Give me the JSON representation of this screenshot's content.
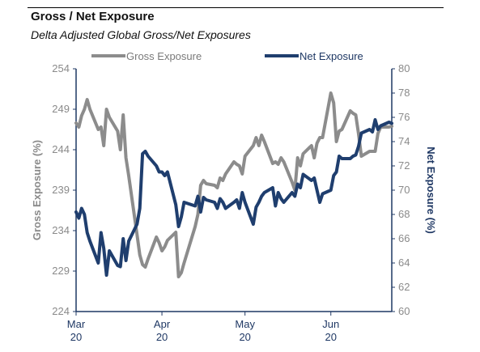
{
  "header": {
    "title": "Gross / Net Exposure",
    "subtitle": "Delta Adjusted Global Gross/Net Exposures"
  },
  "colors": {
    "gross": "#8c8c8c",
    "net": "#1f3e6e",
    "axis": "#1f3864",
    "tick_text": "#8a8a8a"
  },
  "chart_data": {
    "type": "line",
    "title": "Gross / Net Exposure",
    "subtitle": "Delta Adjusted Global Gross/Net Exposures",
    "legend_position": "top",
    "grid": false,
    "x_range": [
      "2020-03-01",
      "2020-06-23"
    ],
    "x_tick_labels": [
      {
        "date": "2020-03-01",
        "line1": "Mar",
        "line2": "20"
      },
      {
        "date": "2020-04-01",
        "line1": "Apr",
        "line2": "20"
      },
      {
        "date": "2020-05-01",
        "line1": "May",
        "line2": "20"
      },
      {
        "date": "2020-06-01",
        "line1": "Jun",
        "line2": "20"
      }
    ],
    "y_left": {
      "label": "Gross Exposure (%)",
      "range": [
        224,
        254
      ],
      "ticks": [
        224,
        229,
        234,
        239,
        244,
        249,
        254
      ]
    },
    "y_right": {
      "label": "Net Exposure (%)",
      "range": [
        60,
        80
      ],
      "ticks": [
        60,
        62,
        64,
        66,
        68,
        70,
        72,
        74,
        76,
        78,
        80
      ]
    },
    "series": [
      {
        "name": "Gross Exposure",
        "axis": "left",
        "color": "#8c8c8c",
        "points": [
          [
            "2020-03-01",
            247.3
          ],
          [
            "2020-03-02",
            246.8
          ],
          [
            "2020-03-03",
            248.2
          ],
          [
            "2020-03-04",
            249.0
          ],
          [
            "2020-03-05",
            250.2
          ],
          [
            "2020-03-06",
            249.0
          ],
          [
            "2020-03-09",
            246.5
          ],
          [
            "2020-03-10",
            246.8
          ],
          [
            "2020-03-11",
            244.5
          ],
          [
            "2020-03-12",
            249.0
          ],
          [
            "2020-03-13",
            248.0
          ],
          [
            "2020-03-16",
            246.3
          ],
          [
            "2020-03-17",
            244.0
          ],
          [
            "2020-03-18",
            248.3
          ],
          [
            "2020-03-19",
            243.0
          ],
          [
            "2020-03-20",
            240.8
          ],
          [
            "2020-03-23",
            233.5
          ],
          [
            "2020-03-24",
            231.0
          ],
          [
            "2020-03-25",
            229.8
          ],
          [
            "2020-03-26",
            229.5
          ],
          [
            "2020-03-27",
            230.5
          ],
          [
            "2020-03-30",
            233.2
          ],
          [
            "2020-03-31",
            232.5
          ],
          [
            "2020-04-01",
            231.5
          ],
          [
            "2020-04-02",
            232.0
          ],
          [
            "2020-04-03",
            232.8
          ],
          [
            "2020-04-06",
            233.8
          ],
          [
            "2020-04-07",
            228.3
          ],
          [
            "2020-04-08",
            228.8
          ],
          [
            "2020-04-09",
            230.0
          ],
          [
            "2020-04-13",
            234.5
          ],
          [
            "2020-04-14",
            236.0
          ],
          [
            "2020-04-15",
            239.6
          ],
          [
            "2020-04-16",
            240.2
          ],
          [
            "2020-04-17",
            239.8
          ],
          [
            "2020-04-20",
            239.6
          ],
          [
            "2020-04-21",
            239.3
          ],
          [
            "2020-04-22",
            240.5
          ],
          [
            "2020-04-23",
            240.2
          ],
          [
            "2020-04-24",
            241.0
          ],
          [
            "2020-04-27",
            242.5
          ],
          [
            "2020-04-28",
            242.2
          ],
          [
            "2020-04-29",
            242.0
          ],
          [
            "2020-04-30",
            241.0
          ],
          [
            "2020-05-01",
            243.2
          ],
          [
            "2020-05-04",
            244.5
          ],
          [
            "2020-05-05",
            245.5
          ],
          [
            "2020-05-06",
            244.5
          ],
          [
            "2020-05-07",
            245.8
          ],
          [
            "2020-05-08",
            245.0
          ],
          [
            "2020-05-11",
            242.3
          ],
          [
            "2020-05-12",
            242.5
          ],
          [
            "2020-05-13",
            242.2
          ],
          [
            "2020-05-14",
            243.0
          ],
          [
            "2020-05-15",
            242.5
          ],
          [
            "2020-05-18",
            240.0
          ],
          [
            "2020-05-19",
            239.0
          ],
          [
            "2020-05-20",
            243.0
          ],
          [
            "2020-05-21",
            242.0
          ],
          [
            "2020-05-22",
            243.5
          ],
          [
            "2020-05-25",
            244.5
          ],
          [
            "2020-05-26",
            243.0
          ],
          [
            "2020-05-27",
            244.8
          ],
          [
            "2020-05-28",
            245.5
          ],
          [
            "2020-05-29",
            245.5
          ],
          [
            "2020-06-01",
            251.0
          ],
          [
            "2020-06-02",
            249.8
          ],
          [
            "2020-06-03",
            245.0
          ],
          [
            "2020-06-04",
            246.3
          ],
          [
            "2020-06-05",
            246.5
          ],
          [
            "2020-06-08",
            248.8
          ],
          [
            "2020-06-09",
            248.5
          ],
          [
            "2020-06-10",
            248.3
          ],
          [
            "2020-06-11",
            246.0
          ],
          [
            "2020-06-12",
            243.2
          ],
          [
            "2020-06-15",
            243.8
          ],
          [
            "2020-06-16",
            243.8
          ],
          [
            "2020-06-17",
            243.8
          ],
          [
            "2020-06-18",
            246.0
          ],
          [
            "2020-06-19",
            246.8
          ],
          [
            "2020-06-22",
            246.8
          ],
          [
            "2020-06-23",
            246.9
          ]
        ]
      },
      {
        "name": "Net Exposure",
        "axis": "right",
        "color": "#1f3e6e",
        "points": [
          [
            "2020-03-01",
            68.2
          ],
          [
            "2020-03-02",
            67.7
          ],
          [
            "2020-03-03",
            68.5
          ],
          [
            "2020-03-04",
            68.0
          ],
          [
            "2020-03-05",
            66.5
          ],
          [
            "2020-03-06",
            65.8
          ],
          [
            "2020-03-09",
            64.0
          ],
          [
            "2020-03-10",
            66.5
          ],
          [
            "2020-03-11",
            65.2
          ],
          [
            "2020-03-12",
            63.0
          ],
          [
            "2020-03-13",
            65.0
          ],
          [
            "2020-03-16",
            63.8
          ],
          [
            "2020-03-17",
            63.7
          ],
          [
            "2020-03-18",
            66.0
          ],
          [
            "2020-03-19",
            64.2
          ],
          [
            "2020-03-20",
            65.8
          ],
          [
            "2020-03-23",
            67.2
          ],
          [
            "2020-03-24",
            68.5
          ],
          [
            "2020-03-25",
            73.0
          ],
          [
            "2020-03-26",
            73.2
          ],
          [
            "2020-03-27",
            72.8
          ],
          [
            "2020-03-30",
            72.0
          ],
          [
            "2020-03-31",
            71.5
          ],
          [
            "2020-04-01",
            71.5
          ],
          [
            "2020-04-02",
            71.2
          ],
          [
            "2020-04-03",
            71.5
          ],
          [
            "2020-04-06",
            68.8
          ],
          [
            "2020-04-07",
            67.0
          ],
          [
            "2020-04-08",
            67.8
          ],
          [
            "2020-04-09",
            69.0
          ],
          [
            "2020-04-13",
            68.7
          ],
          [
            "2020-04-14",
            69.5
          ],
          [
            "2020-04-15",
            68.2
          ],
          [
            "2020-04-16",
            69.4
          ],
          [
            "2020-04-17",
            69.2
          ],
          [
            "2020-04-20",
            69.0
          ],
          [
            "2020-04-21",
            68.5
          ],
          [
            "2020-04-22",
            69.3
          ],
          [
            "2020-04-23",
            69.0
          ],
          [
            "2020-04-24",
            68.5
          ],
          [
            "2020-04-27",
            69.0
          ],
          [
            "2020-04-28",
            69.2
          ],
          [
            "2020-04-29",
            68.5
          ],
          [
            "2020-04-30",
            69.8
          ],
          [
            "2020-05-01",
            69.0
          ],
          [
            "2020-05-04",
            67.2
          ],
          [
            "2020-05-05",
            68.6
          ],
          [
            "2020-05-06",
            69.0
          ],
          [
            "2020-05-07",
            69.5
          ],
          [
            "2020-05-08",
            69.8
          ],
          [
            "2020-05-11",
            70.2
          ],
          [
            "2020-05-12",
            68.7
          ],
          [
            "2020-05-13",
            69.8
          ],
          [
            "2020-05-14",
            69.3
          ],
          [
            "2020-05-15",
            69.0
          ],
          [
            "2020-05-18",
            69.8
          ],
          [
            "2020-05-19",
            69.5
          ],
          [
            "2020-05-20",
            70.5
          ],
          [
            "2020-05-21",
            70.2
          ],
          [
            "2020-05-22",
            71.3
          ],
          [
            "2020-05-25",
            70.8
          ],
          [
            "2020-05-26",
            71.0
          ],
          [
            "2020-05-27",
            70.0
          ],
          [
            "2020-05-28",
            69.0
          ],
          [
            "2020-05-29",
            69.7
          ],
          [
            "2020-06-01",
            70.0
          ],
          [
            "2020-06-02",
            71.2
          ],
          [
            "2020-06-03",
            71.5
          ],
          [
            "2020-06-04",
            72.8
          ],
          [
            "2020-06-05",
            72.6
          ],
          [
            "2020-06-08",
            72.6
          ],
          [
            "2020-06-09",
            72.8
          ],
          [
            "2020-06-10",
            72.9
          ],
          [
            "2020-06-11",
            73.6
          ],
          [
            "2020-06-12",
            74.7
          ],
          [
            "2020-06-15",
            75.0
          ],
          [
            "2020-06-16",
            74.8
          ],
          [
            "2020-06-17",
            75.8
          ],
          [
            "2020-06-18",
            75.0
          ],
          [
            "2020-06-19",
            75.3
          ],
          [
            "2020-06-22",
            75.6
          ],
          [
            "2020-06-23",
            75.5
          ]
        ]
      }
    ]
  }
}
